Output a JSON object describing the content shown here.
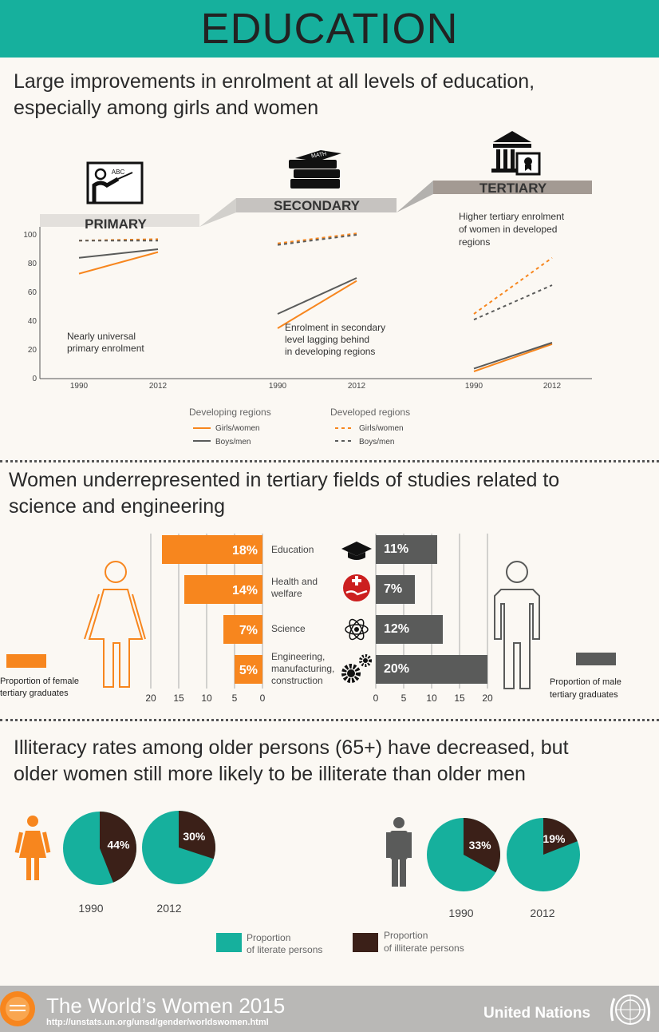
{
  "header": {
    "title": "EDUCATION"
  },
  "section1": {
    "heading_line1": "Large improvements in enrolment at all levels of education,",
    "heading_line2": "especially among girls and women",
    "levels": {
      "primary": "PRIMARY",
      "secondary": "SECONDARY",
      "tertiary": "TERTIARY"
    },
    "y_ticks": [
      "100",
      "80",
      "60",
      "40",
      "20",
      "0"
    ],
    "x_ticks": [
      "1990",
      "2012",
      "1990",
      "2012",
      "1990",
      "2012"
    ],
    "notes": {
      "primary_1": "Nearly universal",
      "primary_2": "primary enrolment",
      "secondary_1": "Enrolment in secondary",
      "secondary_2": "level lagging behind",
      "secondary_3": "in developing regions",
      "tertiary_1": "Higher tertiary enrolment",
      "tertiary_2": "of women in developed",
      "tertiary_3": "regions"
    },
    "book_label": "MATH",
    "board_label": "ABC",
    "legend": {
      "developing": "Developing regions",
      "developed": "Developed regions",
      "girls": "Girls/women",
      "boys": "Boys/men"
    }
  },
  "chart_data": [
    {
      "type": "line",
      "title": "Large improvements in enrolment at all levels of education, especially among girls and women",
      "ylim": [
        0,
        100
      ],
      "panels": [
        {
          "level": "PRIMARY",
          "x": [
            1990,
            2012
          ],
          "series": [
            {
              "name": "Developing regions - Girls/women",
              "values": [
                73,
                88
              ]
            },
            {
              "name": "Developing regions - Boys/men",
              "values": [
                84,
                90
              ]
            },
            {
              "name": "Developed regions - Girls/women",
              "values": [
                96,
                97
              ]
            },
            {
              "name": "Developed regions - Boys/men",
              "values": [
                96,
                96
              ]
            }
          ]
        },
        {
          "level": "SECONDARY",
          "x": [
            1990,
            2012
          ],
          "series": [
            {
              "name": "Developing regions - Girls/women",
              "values": [
                35,
                68
              ]
            },
            {
              "name": "Developing regions - Boys/men",
              "values": [
                45,
                70
              ]
            },
            {
              "name": "Developed regions - Girls/women",
              "values": [
                94,
                101
              ]
            },
            {
              "name": "Developed regions - Boys/men",
              "values": [
                93,
                100
              ]
            }
          ]
        },
        {
          "level": "TERTIARY",
          "x": [
            1990,
            2012
          ],
          "series": [
            {
              "name": "Developing regions - Girls/women",
              "values": [
                5,
                24
              ]
            },
            {
              "name": "Developing regions - Boys/men",
              "values": [
                7,
                25
              ]
            },
            {
              "name": "Developed regions - Girls/women",
              "values": [
                45,
                84
              ]
            },
            {
              "name": "Developed regions - Boys/men",
              "values": [
                41,
                65
              ]
            }
          ]
        }
      ]
    },
    {
      "type": "bar",
      "title": "Women underrepresented in tertiary fields of studies related to science and engineering",
      "categories": [
        "Education",
        "Health and welfare",
        "Science",
        "Engineering, manufacturing, construction"
      ],
      "series": [
        {
          "name": "Proportion of female tertiary graduates",
          "values": [
            18,
            14,
            7,
            5
          ]
        },
        {
          "name": "Proportion of male tertiary graduates",
          "values": [
            11,
            7,
            12,
            20
          ]
        }
      ],
      "xlim": [
        0,
        20
      ]
    },
    {
      "type": "pie",
      "title": "Illiteracy rates among older persons (65+)",
      "series": [
        {
          "name": "Women 1990",
          "values": [
            56,
            44
          ]
        },
        {
          "name": "Women 2012",
          "values": [
            70,
            30
          ]
        },
        {
          "name": "Men 1990",
          "values": [
            67,
            33
          ]
        },
        {
          "name": "Men 2012",
          "values": [
            81,
            19
          ]
        }
      ],
      "categories": [
        "Proportion of literate persons",
        "Proportion of illiterate persons"
      ]
    }
  ],
  "section2": {
    "heading_line1": "Women underrepresented in tertiary fields of studies related to",
    "heading_line2": "science and engineering",
    "female_pcts": [
      "18%",
      "14%",
      "7%",
      "5%"
    ],
    "male_pcts": [
      "11%",
      "7%",
      "12%",
      "20%"
    ],
    "fields": [
      [
        "Education"
      ],
      [
        "Health and",
        "welfare"
      ],
      [
        "Science"
      ],
      [
        "Engineering,",
        "manufacturing,",
        "construction"
      ]
    ],
    "female_axis": [
      "20",
      "15",
      "10",
      "5",
      "0"
    ],
    "male_axis": [
      "0",
      "5",
      "10",
      "15",
      "20"
    ],
    "female_legend_1": "Proportion of female",
    "female_legend_2": "tertiary graduates",
    "male_legend_1": "Proportion of male",
    "male_legend_2": "tertiary graduates"
  },
  "section3": {
    "heading_line1": "Illiteracy rates among older persons (65+) have decreased, but",
    "heading_line2": "older women still more likely to be illiterate than older men",
    "women_1990": "44%",
    "women_2012": "30%",
    "men_1990": "33%",
    "men_2012": "19%",
    "year_1990": "1990",
    "year_2012": "2012",
    "legend_literate_1": "Proportion",
    "legend_literate_2": "of literate persons",
    "legend_illiterate_1": "Proportion",
    "legend_illiterate_2": "of illiterate persons"
  },
  "footer": {
    "title": "The World’s Women 2015",
    "url": "http://unstats.un.org/unsd/gender/worldswomen.html",
    "org": "United Nations"
  },
  "colors": {
    "teal": "#16b09d",
    "orange": "#f7861e",
    "gray": "#5a5b5a",
    "brown": "#3b2018",
    "footer_gray": "#b9b8b6"
  }
}
